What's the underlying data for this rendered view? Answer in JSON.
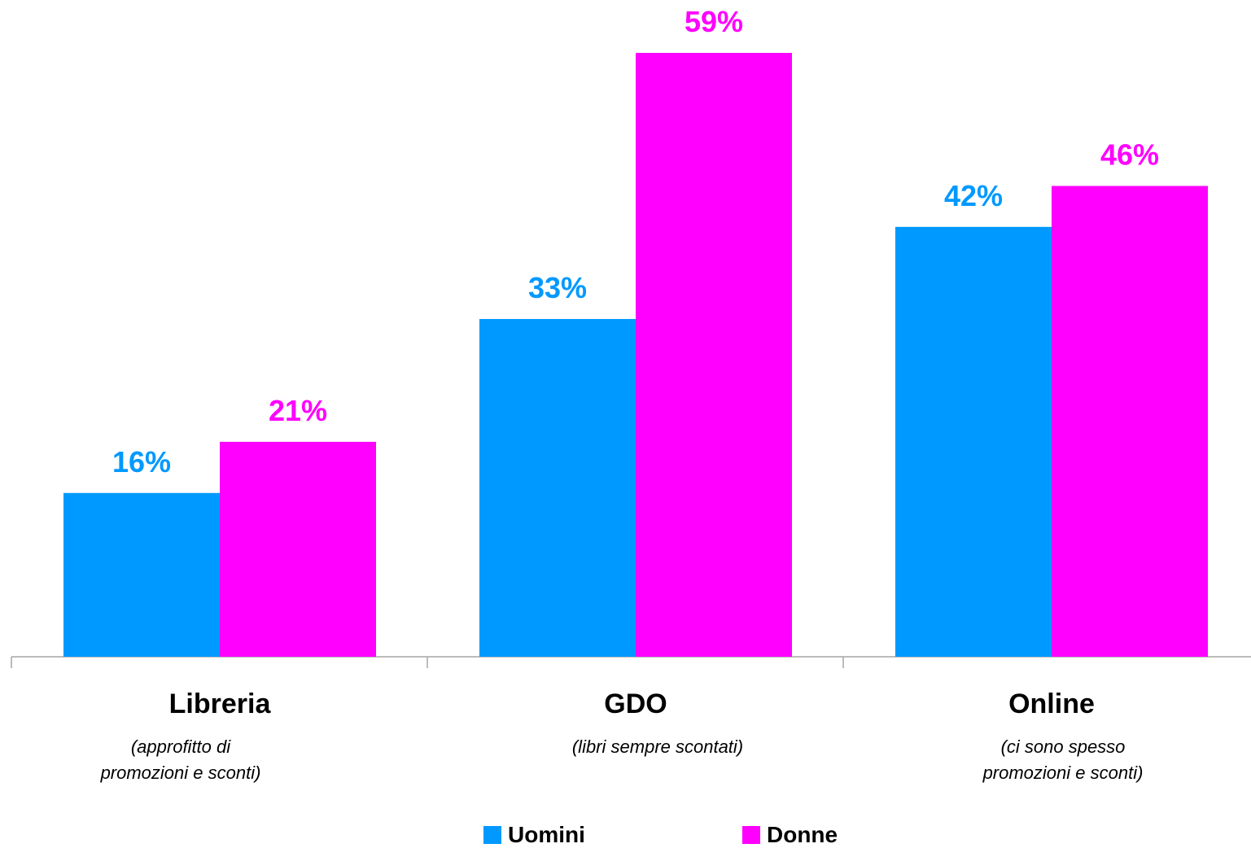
{
  "chart_data": {
    "type": "bar",
    "categories": [
      "Libreria",
      "GDO",
      "Online"
    ],
    "category_notes": [
      "(approfitto di\npromozioni e sconti)",
      "(libri sempre scontati)",
      "(ci sono spesso\npromozioni e sconti)"
    ],
    "series": [
      {
        "name": "Uomini",
        "values": [
          16,
          33,
          42
        ],
        "labels": [
          "16%",
          "33%",
          "42%"
        ],
        "color": "#0099FF"
      },
      {
        "name": "Donne",
        "values": [
          21,
          59,
          46
        ],
        "labels": [
          "21%",
          "59%",
          "46%"
        ],
        "color": "#FF00FF"
      }
    ],
    "ylim": [
      0,
      59
    ],
    "grid": false,
    "legend_position": "bottom"
  }
}
